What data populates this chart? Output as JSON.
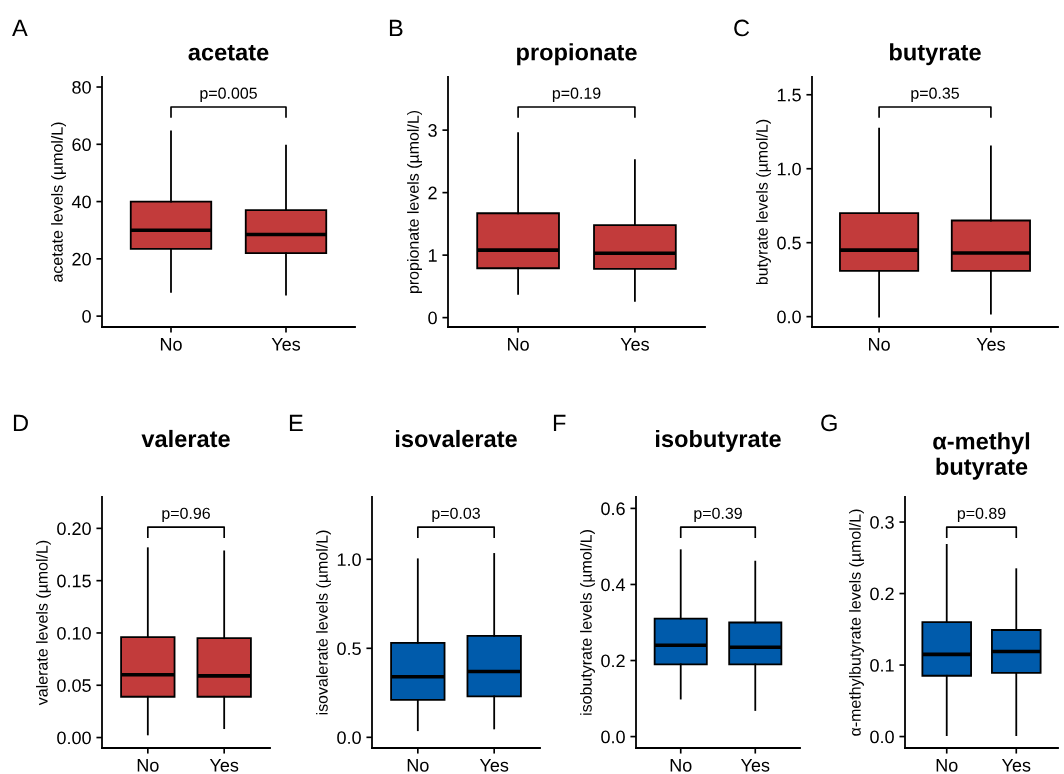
{
  "chart_data": [
    {
      "type": "box",
      "title": "acetate",
      "ylabel": "acetate levels (µmol/L)",
      "categories": [
        "No",
        "Yes"
      ],
      "colors": [
        "#c23b3b",
        "#c23b3b"
      ],
      "ylim": [
        -3.8,
        83.5
      ],
      "yticks": [
        0,
        20,
        40,
        60,
        80
      ],
      "annotations": [
        "A",
        "p=0.005"
      ],
      "boxes": [
        {
          "low": 8.5,
          "q1": 23.5,
          "median": 30,
          "q3": 40,
          "high": 64.5
        },
        {
          "low": 7.5,
          "q1": 22,
          "median": 28.5,
          "q3": 37,
          "high": 59.5
        }
      ]
    },
    {
      "type": "box",
      "title": "propionate",
      "ylabel": "propionate levels (µmol/L)",
      "categories": [
        "No",
        "Yes"
      ],
      "colors": [
        "#c23b3b",
        "#c23b3b"
      ],
      "ylim": [
        -0.15,
        3.85
      ],
      "yticks": [
        0,
        1,
        2,
        3
      ],
      "annotations": [
        "B",
        "p=0.19"
      ],
      "boxes": [
        {
          "low": 0.38,
          "q1": 0.79,
          "median": 1.08,
          "q3": 1.67,
          "high": 2.95
        },
        {
          "low": 0.27,
          "q1": 0.78,
          "median": 1.03,
          "q3": 1.48,
          "high": 2.52
        }
      ]
    },
    {
      "type": "box",
      "title": "butyrate",
      "ylabel": "butyrate levels (µmol/L)",
      "categories": [
        "No",
        "Yes"
      ],
      "colors": [
        "#c23b3b",
        "#c23b3b"
      ],
      "ylim": [
        -0.07,
        1.62
      ],
      "yticks": [
        {
          "value": 0,
          "label": "0.0"
        },
        {
          "value": 0.5,
          "label": "0.5"
        },
        {
          "value": 1,
          "label": "1.0"
        },
        {
          "value": 1.5,
          "label": "1.5"
        }
      ],
      "annotations": [
        "C",
        "p=0.35"
      ],
      "boxes": [
        {
          "low": 0.0,
          "q1": 0.31,
          "median": 0.45,
          "q3": 0.7,
          "high": 1.27
        },
        {
          "low": 0.02,
          "q1": 0.31,
          "median": 0.43,
          "q3": 0.65,
          "high": 1.15
        }
      ]
    },
    {
      "type": "box",
      "title": "valerate",
      "ylabel": "valerate levels (µmol/L)",
      "categories": [
        "No",
        "Yes"
      ],
      "colors": [
        "#c23b3b",
        "#c23b3b"
      ],
      "ylim": [
        -0.01,
        0.23
      ],
      "yticks": [
        {
          "value": 0,
          "label": "0.00"
        },
        {
          "value": 0.05,
          "label": "0.05"
        },
        {
          "value": 0.1,
          "label": "0.10"
        },
        {
          "value": 0.15,
          "label": "0.15"
        },
        {
          "value": 0.2,
          "label": "0.20"
        }
      ],
      "annotations": [
        "D",
        "p=0.96"
      ],
      "boxes": [
        {
          "low": 0.003,
          "q1": 0.039,
          "median": 0.06,
          "q3": 0.096,
          "high": 0.181
        },
        {
          "low": 0.009,
          "q1": 0.039,
          "median": 0.059,
          "q3": 0.095,
          "high": 0.178
        }
      ]
    },
    {
      "type": "box",
      "title": "isovalerate",
      "ylabel": "isovalerate levels (µmol/L)",
      "categories": [
        "No",
        "Yes"
      ],
      "colors": [
        "#005bab",
        "#005bab"
      ],
      "ylim": [
        -0.06,
        1.35
      ],
      "yticks": [
        {
          "value": 0,
          "label": "0.0"
        },
        {
          "value": 0.5,
          "label": "0.5"
        },
        {
          "value": 1,
          "label": "1.0"
        }
      ],
      "annotations": [
        "E",
        "p=0.03"
      ],
      "boxes": [
        {
          "low": 0.04,
          "q1": 0.21,
          "median": 0.34,
          "q3": 0.53,
          "high": 1.0
        },
        {
          "low": 0.05,
          "q1": 0.23,
          "median": 0.37,
          "q3": 0.57,
          "high": 1.03
        }
      ]
    },
    {
      "type": "box",
      "title": "isobutyrate",
      "ylabel": "isobutyrate levels (µmol/L)",
      "categories": [
        "No",
        "Yes"
      ],
      "colors": [
        "#005bab",
        "#005bab"
      ],
      "ylim": [
        -0.03,
        0.63
      ],
      "yticks": [
        {
          "value": 0,
          "label": "0.0"
        },
        {
          "value": 0.2,
          "label": "0.2"
        },
        {
          "value": 0.4,
          "label": "0.4"
        },
        {
          "value": 0.6,
          "label": "0.6"
        }
      ],
      "annotations": [
        "F",
        "p=0.39"
      ],
      "boxes": [
        {
          "low": 0.1,
          "q1": 0.19,
          "median": 0.24,
          "q3": 0.31,
          "high": 0.49
        },
        {
          "low": 0.07,
          "q1": 0.19,
          "median": 0.235,
          "q3": 0.3,
          "high": 0.46
        }
      ]
    },
    {
      "type": "box",
      "title": "α-methyl\nbutyrate",
      "ylabel": "α-methylbutyrate levels (µmol/L)",
      "categories": [
        "No",
        "Yes"
      ],
      "colors": [
        "#005bab",
        "#005bab"
      ],
      "ylim": [
        -0.016,
        0.335
      ],
      "yticks": [
        {
          "value": 0,
          "label": "0.0"
        },
        {
          "value": 0.1,
          "label": "0.1"
        },
        {
          "value": 0.2,
          "label": "0.2"
        },
        {
          "value": 0.3,
          "label": "0.3"
        }
      ],
      "annotations": [
        "G",
        "p=0.89"
      ],
      "boxes": [
        {
          "low": 0.002,
          "q1": 0.085,
          "median": 0.115,
          "q3": 0.16,
          "high": 0.268
        },
        {
          "low": 0.002,
          "q1": 0.089,
          "median": 0.119,
          "q3": 0.149,
          "high": 0.234
        }
      ]
    }
  ]
}
